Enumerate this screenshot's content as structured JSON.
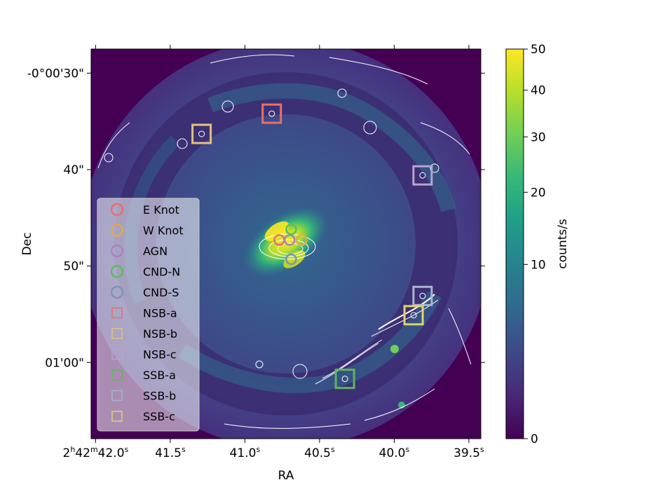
{
  "chart_data": {
    "type": "heatmap",
    "title": "",
    "xlabel": "RA",
    "ylabel": "Dec",
    "colorbar_label": "counts/s",
    "colorbar_range": [
      0,
      50
    ],
    "colorbar_scale": "sqrt",
    "colorbar_ticks": [
      {
        "value": 0,
        "label": "0"
      },
      {
        "value": 10,
        "label": "10"
      },
      {
        "value": 20,
        "label": "20"
      },
      {
        "value": 30,
        "label": "30"
      },
      {
        "value": 40,
        "label": "40"
      },
      {
        "value": 50,
        "label": "50"
      }
    ],
    "colormap": [
      "#440154",
      "#482878",
      "#3e4989",
      "#31688e",
      "#26828e",
      "#1f9e89",
      "#35b779",
      "#6ece58",
      "#b5de2b",
      "#fde725"
    ],
    "ra_range_sec": [
      42.03,
      39.42
    ],
    "dec_range_arcsec": [
      27.5,
      67.9
    ],
    "x_ticks": [
      {
        "value": 42.0,
        "main": "2",
        "sup1": "h",
        "mid": "42",
        "sup2": "m",
        "tail": "42.0",
        "sup3": "s"
      },
      {
        "value": 41.5,
        "main": "41.5",
        "sup3": "s"
      },
      {
        "value": 41.0,
        "main": "41.0",
        "sup3": "s"
      },
      {
        "value": 40.5,
        "main": "40.5",
        "sup3": "s"
      },
      {
        "value": 40.0,
        "main": "40.0",
        "sup3": "s"
      },
      {
        "value": 39.5,
        "main": "39.5",
        "sup3": "s"
      }
    ],
    "y_ticks": [
      {
        "value": 30,
        "label": "-0°00'30\""
      },
      {
        "value": 40,
        "label": "40\""
      },
      {
        "value": 50,
        "label": "50\""
      },
      {
        "value": 60,
        "label": "01'00\""
      }
    ],
    "markers": [
      {
        "name": "E Knot",
        "shape": "circle",
        "color": "#e8706a",
        "ra": 40.77,
        "dec": 47.3
      },
      {
        "name": "W Knot",
        "shape": "circle",
        "color": "#e3a84e",
        "ra": 40.62,
        "dec": 47.3
      },
      {
        "name": "AGN",
        "shape": "circle",
        "color": "#a982c4",
        "ra": 40.7,
        "dec": 47.3
      },
      {
        "name": "CND-N",
        "shape": "circle",
        "color": "#5bbf5b",
        "ra": 40.69,
        "dec": 46.2
      },
      {
        "name": "CND-S",
        "shape": "circle",
        "color": "#7f93b5",
        "ra": 40.69,
        "dec": 49.3
      },
      {
        "name": "NSB-a",
        "shape": "square",
        "color": "#e8706a",
        "ra": 40.82,
        "dec": 34.2
      },
      {
        "name": "NSB-b",
        "shape": "square",
        "color": "#e3c27a",
        "ra": 41.29,
        "dec": 36.3
      },
      {
        "name": "NSB-c",
        "shape": "square",
        "color": "#b9a2d0",
        "ra": 39.81,
        "dec": 40.6
      },
      {
        "name": "SSB-a",
        "shape": "square",
        "color": "#5fb55f",
        "ra": 40.33,
        "dec": 61.7
      },
      {
        "name": "SSB-b",
        "shape": "square",
        "color": "#aab4cf",
        "ra": 39.81,
        "dec": 53.1
      },
      {
        "name": "SSB-c",
        "shape": "square",
        "color": "#e0d36a",
        "ra": 39.87,
        "dec": 55.1
      }
    ],
    "legend": {
      "location": "center-left",
      "entries": [
        "E Knot",
        "W Knot",
        "AGN",
        "CND-N",
        "CND-S",
        "NSB-a",
        "NSB-b",
        "NSB-c",
        "SSB-a",
        "SSB-b",
        "SSB-c"
      ]
    },
    "contours": "white"
  }
}
